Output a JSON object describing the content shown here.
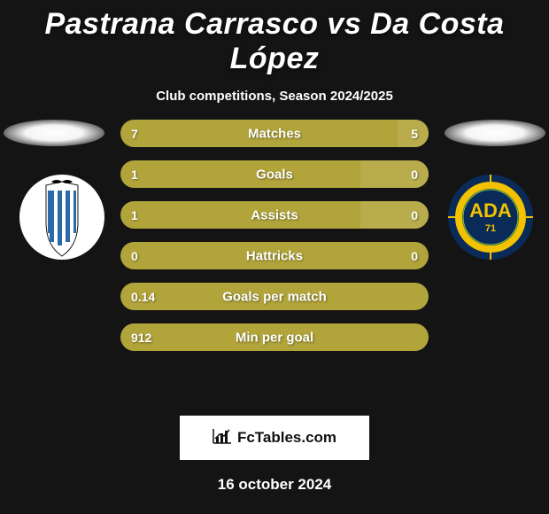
{
  "title": "Pastrana Carrasco vs Da Costa López",
  "subtitle": "Club competitions, Season 2024/2025",
  "date": "16 october 2024",
  "footer": {
    "text": "FcTables.com"
  },
  "colors": {
    "background": "#141414",
    "bar_base": "#b1a43a",
    "bar_light": "#b9ac4c",
    "text": "#ffffff"
  },
  "badges": {
    "left": {
      "name": "club-left",
      "circle_fill": "#ffffff",
      "stripes": [
        "#2a6aa8",
        "#ffffff"
      ],
      "crest_top": "#000000"
    },
    "right": {
      "name": "club-right",
      "outer": "#0a2a57",
      "mid": "#f2c200",
      "inner": "#0a2a57",
      "text": "ADA",
      "text_color": "#f2c200",
      "number": "71"
    }
  },
  "bars": [
    {
      "label": "Matches",
      "left": "7",
      "right": "5",
      "light_right_pct": 10
    },
    {
      "label": "Goals",
      "left": "1",
      "right": "0",
      "light_right_pct": 22
    },
    {
      "label": "Assists",
      "left": "1",
      "right": "0",
      "light_right_pct": 22
    },
    {
      "label": "Hattricks",
      "left": "0",
      "right": "0",
      "light_right_pct": 0
    },
    {
      "label": "Goals per match",
      "left": "0.14",
      "right": "",
      "light_right_pct": 0
    },
    {
      "label": "Min per goal",
      "left": "912",
      "right": "",
      "light_right_pct": 0
    }
  ]
}
